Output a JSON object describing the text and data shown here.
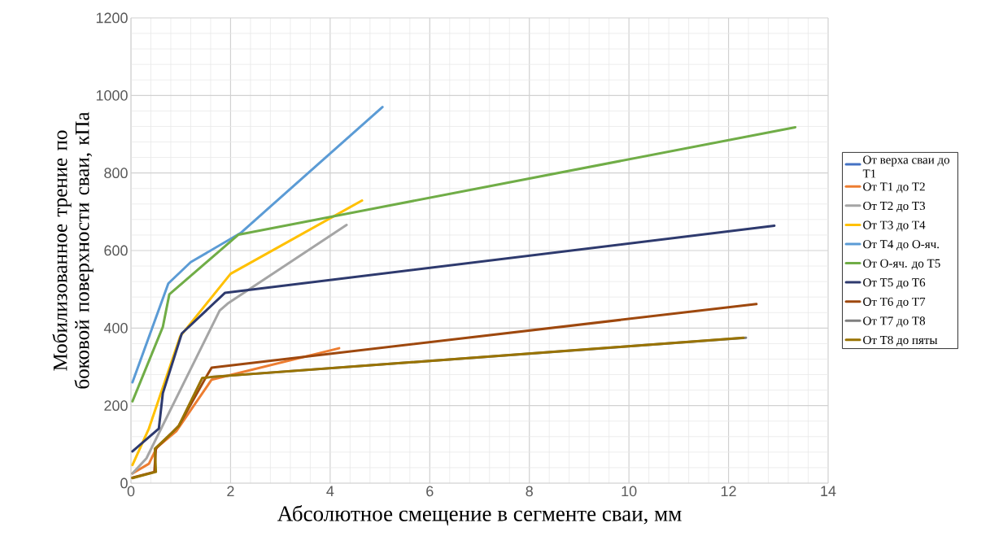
{
  "chart_data": {
    "type": "line",
    "xlabel": "Абсолютное смещение в сегменте сваи, мм",
    "ylabel": "Мобилизованное трение по боковой поверхности сваи, кПа",
    "xlim": [
      0,
      14
    ],
    "xticks": [
      0,
      2,
      4,
      6,
      8,
      10,
      12,
      14
    ],
    "ylim": [
      0,
      1200
    ],
    "yticks": [
      0,
      200,
      400,
      600,
      800,
      1000,
      1200
    ],
    "grid": true,
    "legend": "right",
    "marker": "none",
    "line_style": "solid",
    "series": [
      {
        "name": "От верха сваи до Т1",
        "color": "#4472c4",
        "values": [
          null
        ]
      },
      {
        "name": "От Т1 до Т2",
        "color": "#ed7d31",
        "x": [
          0.03,
          0.36,
          0.52,
          0.91,
          1.62,
          4.18
        ],
        "values": [
          25,
          50,
          92,
          134,
          267,
          348
        ]
      },
      {
        "name": "От Т2 до Т3",
        "color": "#a5a5a5",
        "x": [
          0.03,
          0.31,
          1.78,
          1.94,
          4.33
        ],
        "values": [
          25,
          64,
          445,
          463,
          666
        ]
      },
      {
        "name": "От Т3 до Т4",
        "color": "#ffc000",
        "x": [
          0.03,
          0.36,
          0.99,
          2.0,
          4.64
        ],
        "values": [
          47,
          141,
          379,
          540,
          729
        ]
      },
      {
        "name": "От Т4 до О-яч.",
        "color": "#5b9bd5",
        "x": [
          0.03,
          0.75,
          1.2,
          2.2,
          5.05
        ],
        "values": [
          260,
          515,
          570,
          645,
          970
        ]
      },
      {
        "name": "От О-яч. до Т5",
        "color": "#70ad47",
        "x": [
          0.03,
          0.64,
          0.77,
          2.16,
          13.34
        ],
        "values": [
          211,
          403,
          487,
          641,
          918
        ]
      },
      {
        "name": "От Т5 до Т6",
        "color": "#2e3a6e",
        "x": [
          0.03,
          0.56,
          0.64,
          1.02,
          1.89,
          12.92
        ],
        "values": [
          82,
          141,
          232,
          386,
          491,
          664
        ]
      },
      {
        "name": "От Т6 до Т7",
        "color": "#9e480e",
        "x": [
          0.03,
          0.47,
          0.5,
          0.96,
          1.51,
          1.62,
          12.56
        ],
        "values": [
          14,
          29,
          89,
          148,
          274,
          298,
          462
        ]
      },
      {
        "name": "От Т7 до Т8",
        "color": "#7f7f7f",
        "x": [
          1.62,
          12.35
        ],
        "values": [
          274,
          375
        ]
      },
      {
        "name": "От Т8 до пяты",
        "color": "#997300",
        "x": [
          0.03,
          0.5,
          0.48,
          0.8,
          0.96,
          1.43,
          1.62,
          12.3
        ],
        "values": [
          13,
          29,
          89,
          127,
          148,
          271,
          274,
          375
        ]
      }
    ]
  }
}
